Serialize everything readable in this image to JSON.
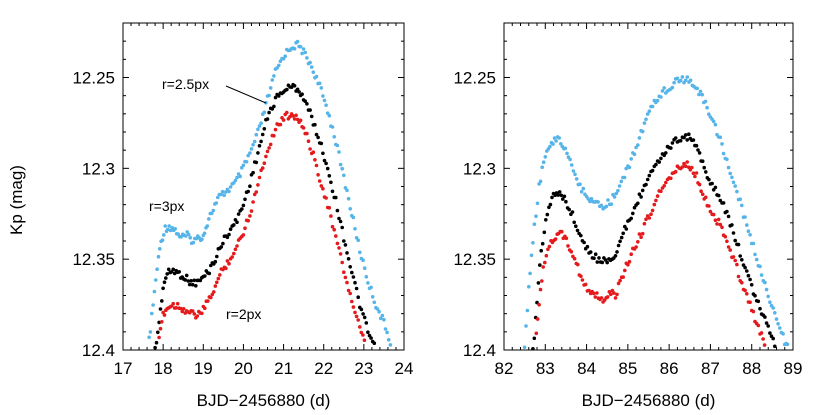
{
  "colors": {
    "r3": "#56b4e9",
    "r25": "#000000",
    "r2": "#e41a1c"
  },
  "ylabel": "Kp (mag)",
  "chart_data": [
    {
      "type": "scatter",
      "xlabel": "BJD−2456880 (d)",
      "xlim": [
        17,
        24
      ],
      "ylim": [
        12.4,
        12.22
      ],
      "y_inverted": true,
      "x_ticks": [
        17,
        18,
        19,
        20,
        21,
        22,
        23,
        24
      ],
      "y_ticks": [
        12.25,
        12.3,
        12.35,
        12.4
      ],
      "annotations": [
        {
          "text": "r=2.5px",
          "points_to_series": "r=2.5px"
        },
        {
          "text": "r=3px",
          "labels_series": "r=3px"
        },
        {
          "text": "r=2px",
          "labels_series": "r=2px"
        }
      ],
      "series": [
        {
          "name": "r=3px",
          "color": "#56b4e9",
          "points": [
            [
              17.65,
              12.395
            ],
            [
              17.75,
              12.375
            ],
            [
              17.85,
              12.355
            ],
            [
              17.95,
              12.34
            ],
            [
              18.05,
              12.333
            ],
            [
              18.15,
              12.332
            ],
            [
              18.3,
              12.334
            ],
            [
              18.45,
              12.338
            ],
            [
              18.6,
              12.337
            ],
            [
              18.75,
              12.34
            ],
            [
              18.9,
              12.338
            ],
            [
              19.0,
              12.337
            ],
            [
              19.1,
              12.33
            ],
            [
              19.25,
              12.322
            ],
            [
              19.4,
              12.316
            ],
            [
              19.6,
              12.312
            ],
            [
              19.8,
              12.308
            ],
            [
              20.0,
              12.3
            ],
            [
              20.2,
              12.29
            ],
            [
              20.4,
              12.278
            ],
            [
              20.6,
              12.262
            ],
            [
              20.8,
              12.247
            ],
            [
              21.0,
              12.238
            ],
            [
              21.2,
              12.233
            ],
            [
              21.35,
              12.232
            ],
            [
              21.5,
              12.236
            ],
            [
              21.7,
              12.244
            ],
            [
              21.9,
              12.255
            ],
            [
              22.1,
              12.268
            ],
            [
              22.3,
              12.285
            ],
            [
              22.5,
              12.305
            ],
            [
              22.7,
              12.325
            ],
            [
              22.9,
              12.345
            ],
            [
              23.1,
              12.362
            ],
            [
              23.3,
              12.375
            ],
            [
              23.5,
              12.385
            ],
            [
              23.7,
              12.398
            ]
          ]
        },
        {
          "name": "r=2.5px",
          "color": "#000000",
          "points": [
            [
              17.8,
              12.4
            ],
            [
              17.9,
              12.385
            ],
            [
              18.0,
              12.365
            ],
            [
              18.1,
              12.358
            ],
            [
              18.25,
              12.356
            ],
            [
              18.4,
              12.358
            ],
            [
              18.55,
              12.36
            ],
            [
              18.7,
              12.363
            ],
            [
              18.85,
              12.363
            ],
            [
              19.0,
              12.36
            ],
            [
              19.15,
              12.356
            ],
            [
              19.3,
              12.35
            ],
            [
              19.45,
              12.342
            ],
            [
              19.6,
              12.336
            ],
            [
              19.8,
              12.33
            ],
            [
              20.0,
              12.32
            ],
            [
              20.2,
              12.305
            ],
            [
              20.4,
              12.288
            ],
            [
              20.6,
              12.272
            ],
            [
              20.8,
              12.262
            ],
            [
              21.0,
              12.257
            ],
            [
              21.2,
              12.255
            ],
            [
              21.35,
              12.256
            ],
            [
              21.5,
              12.261
            ],
            [
              21.7,
              12.272
            ],
            [
              21.9,
              12.285
            ],
            [
              22.1,
              12.3
            ],
            [
              22.3,
              12.318
            ],
            [
              22.5,
              12.338
            ],
            [
              22.7,
              12.357
            ],
            [
              22.9,
              12.375
            ],
            [
              23.1,
              12.39
            ],
            [
              23.3,
              12.4
            ]
          ]
        },
        {
          "name": "r=2px",
          "color": "#e41a1c",
          "points": [
            [
              17.9,
              12.395
            ],
            [
              18.0,
              12.38
            ],
            [
              18.1,
              12.377
            ],
            [
              18.25,
              12.375
            ],
            [
              18.4,
              12.376
            ],
            [
              18.55,
              12.378
            ],
            [
              18.7,
              12.38
            ],
            [
              18.85,
              12.381
            ],
            [
              19.0,
              12.378
            ],
            [
              19.15,
              12.372
            ],
            [
              19.3,
              12.365
            ],
            [
              19.45,
              12.357
            ],
            [
              19.6,
              12.352
            ],
            [
              19.8,
              12.345
            ],
            [
              20.0,
              12.335
            ],
            [
              20.2,
              12.322
            ],
            [
              20.4,
              12.305
            ],
            [
              20.6,
              12.29
            ],
            [
              20.8,
              12.278
            ],
            [
              21.0,
              12.272
            ],
            [
              21.2,
              12.27
            ],
            [
              21.35,
              12.272
            ],
            [
              21.5,
              12.278
            ],
            [
              21.7,
              12.29
            ],
            [
              21.9,
              12.305
            ],
            [
              22.1,
              12.32
            ],
            [
              22.3,
              12.338
            ],
            [
              22.5,
              12.356
            ],
            [
              22.7,
              12.373
            ],
            [
              22.9,
              12.388
            ],
            [
              23.05,
              12.399
            ]
          ]
        }
      ]
    },
    {
      "type": "scatter",
      "xlabel": "BJD−2456880 (d)",
      "xlim": [
        82,
        89
      ],
      "ylim": [
        12.4,
        12.22
      ],
      "y_inverted": true,
      "x_ticks": [
        82,
        83,
        84,
        85,
        86,
        87,
        88,
        89
      ],
      "y_ticks": [
        12.25,
        12.3,
        12.35,
        12.4
      ],
      "series": [
        {
          "name": "r=3px",
          "color": "#56b4e9",
          "points": [
            [
              82.5,
              12.4
            ],
            [
              82.6,
              12.365
            ],
            [
              82.7,
              12.34
            ],
            [
              82.85,
              12.31
            ],
            [
              83.0,
              12.292
            ],
            [
              83.15,
              12.285
            ],
            [
              83.3,
              12.284
            ],
            [
              83.45,
              12.288
            ],
            [
              83.6,
              12.297
            ],
            [
              83.8,
              12.308
            ],
            [
              84.0,
              12.316
            ],
            [
              84.2,
              12.32
            ],
            [
              84.4,
              12.321
            ],
            [
              84.6,
              12.318
            ],
            [
              84.8,
              12.31
            ],
            [
              85.0,
              12.3
            ],
            [
              85.2,
              12.288
            ],
            [
              85.4,
              12.276
            ],
            [
              85.6,
              12.266
            ],
            [
              85.8,
              12.259
            ],
            [
              86.0,
              12.255
            ],
            [
              86.2,
              12.252
            ],
            [
              86.4,
              12.251
            ],
            [
              86.6,
              12.254
            ],
            [
              86.8,
              12.261
            ],
            [
              87.0,
              12.27
            ],
            [
              87.2,
              12.282
            ],
            [
              87.4,
              12.296
            ],
            [
              87.6,
              12.31
            ],
            [
              87.8,
              12.325
            ],
            [
              88.0,
              12.34
            ],
            [
              88.2,
              12.355
            ],
            [
              88.4,
              12.37
            ],
            [
              88.6,
              12.382
            ],
            [
              88.8,
              12.395
            ],
            [
              88.9,
              12.4
            ]
          ]
        },
        {
          "name": "r=2.5px",
          "color": "#000000",
          "points": [
            [
              82.7,
              12.4
            ],
            [
              82.8,
              12.375
            ],
            [
              82.9,
              12.345
            ],
            [
              83.05,
              12.325
            ],
            [
              83.2,
              12.315
            ],
            [
              83.35,
              12.312
            ],
            [
              83.5,
              12.318
            ],
            [
              83.7,
              12.328
            ],
            [
              83.9,
              12.34
            ],
            [
              84.1,
              12.348
            ],
            [
              84.3,
              12.35
            ],
            [
              84.5,
              12.351
            ],
            [
              84.7,
              12.347
            ],
            [
              84.85,
              12.338
            ],
            [
              85.0,
              12.33
            ],
            [
              85.2,
              12.32
            ],
            [
              85.4,
              12.31
            ],
            [
              85.6,
              12.302
            ],
            [
              85.8,
              12.295
            ],
            [
              86.0,
              12.288
            ],
            [
              86.2,
              12.284
            ],
            [
              86.4,
              12.282
            ],
            [
              86.55,
              12.284
            ],
            [
              86.7,
              12.29
            ],
            [
              86.85,
              12.3
            ],
            [
              87.0,
              12.307
            ],
            [
              87.2,
              12.315
            ],
            [
              87.4,
              12.325
            ],
            [
              87.6,
              12.338
            ],
            [
              87.8,
              12.352
            ],
            [
              88.0,
              12.365
            ],
            [
              88.2,
              12.377
            ],
            [
              88.4,
              12.388
            ],
            [
              88.6,
              12.398
            ]
          ]
        },
        {
          "name": "r=2px",
          "color": "#e41a1c",
          "points": [
            [
              82.75,
              12.4
            ],
            [
              82.85,
              12.375
            ],
            [
              82.95,
              12.355
            ],
            [
              83.1,
              12.342
            ],
            [
              83.25,
              12.337
            ],
            [
              83.4,
              12.336
            ],
            [
              83.55,
              12.342
            ],
            [
              83.75,
              12.352
            ],
            [
              83.9,
              12.362
            ],
            [
              84.1,
              12.368
            ],
            [
              84.25,
              12.37
            ],
            [
              84.4,
              12.372
            ],
            [
              84.55,
              12.368
            ],
            [
              84.7,
              12.37
            ],
            [
              84.85,
              12.36
            ],
            [
              85.0,
              12.352
            ],
            [
              85.2,
              12.342
            ],
            [
              85.4,
              12.332
            ],
            [
              85.6,
              12.322
            ],
            [
              85.8,
              12.312
            ],
            [
              86.0,
              12.305
            ],
            [
              86.2,
              12.3
            ],
            [
              86.4,
              12.298
            ],
            [
              86.55,
              12.3
            ],
            [
              86.7,
              12.306
            ],
            [
              86.85,
              12.316
            ],
            [
              87.0,
              12.323
            ],
            [
              87.2,
              12.33
            ],
            [
              87.4,
              12.34
            ],
            [
              87.6,
              12.352
            ],
            [
              87.8,
              12.366
            ],
            [
              88.0,
              12.378
            ],
            [
              88.2,
              12.39
            ],
            [
              88.35,
              12.399
            ]
          ]
        }
      ]
    }
  ]
}
